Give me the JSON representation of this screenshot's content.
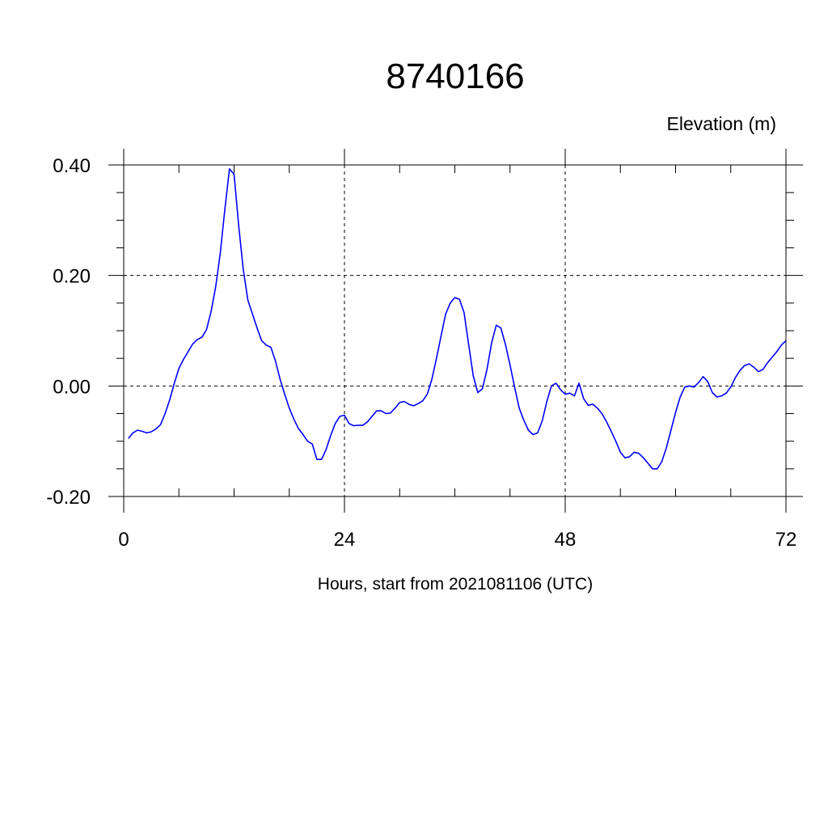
{
  "chart_data": {
    "type": "line",
    "title": "8740166",
    "ylabel": "Elevation (m)",
    "xlabel": "Hours, start from 2021081106 (UTC)",
    "xlim": [
      0,
      72
    ],
    "ylim": [
      -0.2,
      0.4
    ],
    "xticks": [
      0,
      24,
      48,
      72
    ],
    "xtick_labels": [
      "0",
      "24",
      "48",
      "72"
    ],
    "yticks": [
      -0.2,
      0,
      0.2,
      0.4
    ],
    "ytick_labels": [
      "-0.20",
      "0.00",
      "0.20",
      "0.40"
    ],
    "grid": true,
    "line_color": "#0000ff",
    "series": [
      {
        "x": [
          0.5,
          1.0,
          1.5,
          2.0,
          2.5,
          3.0,
          3.5,
          4.0,
          4.5,
          5.0,
          5.5,
          6.0,
          6.5,
          7.0,
          7.5,
          8.0,
          8.5,
          9.0,
          9.5,
          10.0,
          10.5,
          11.0,
          11.5,
          12.0,
          12.5,
          13.0,
          13.5,
          14.0,
          14.5,
          15.0,
          15.5,
          16.0,
          16.5,
          17.0,
          17.5,
          18.0,
          18.5,
          19.0,
          19.5,
          20.0,
          20.5,
          21.0,
          21.5,
          22.0,
          22.5,
          23.0,
          23.5,
          24.0,
          24.5,
          25.0,
          25.5,
          26.0,
          26.5,
          27.0,
          27.5,
          28.0,
          28.5,
          29.0,
          29.5,
          30.0,
          30.5,
          31.0,
          31.5,
          32.0,
          32.5,
          33.0,
          33.5,
          34.0,
          34.5,
          35.0,
          35.5,
          36.0,
          36.5,
          37.0,
          37.5,
          38.0,
          38.5,
          39.0,
          39.5,
          40.0,
          40.5,
          41.0,
          41.5,
          42.0,
          42.5,
          43.0,
          43.5,
          44.0,
          44.5,
          45.0,
          45.5,
          46.0,
          46.5,
          47.0,
          47.5,
          48.0,
          48.5,
          49.0,
          49.5,
          50.0,
          50.5,
          51.0,
          51.5,
          52.0,
          52.5,
          53.0,
          53.5,
          54.0,
          54.5,
          55.0,
          55.5,
          56.0,
          56.5,
          57.0,
          57.5,
          58.0,
          58.5,
          59.0,
          59.5,
          60.0,
          60.5,
          61.0,
          61.5,
          62.0,
          62.5,
          63.0,
          63.5,
          64.0,
          64.5,
          65.0,
          65.5,
          66.0,
          66.5,
          67.0,
          67.5,
          68.0,
          68.5,
          69.0,
          69.5,
          70.0,
          70.5,
          71.0,
          71.5,
          72.0
        ],
        "values": [
          -0.095,
          -0.085,
          -0.08,
          -0.082,
          -0.085,
          -0.083,
          -0.078,
          -0.07,
          -0.05,
          -0.025,
          0.005,
          0.032,
          0.048,
          0.062,
          0.076,
          0.084,
          0.088,
          0.102,
          0.135,
          0.18,
          0.24,
          0.32,
          0.393,
          0.383,
          0.29,
          0.21,
          0.155,
          0.13,
          0.105,
          0.082,
          0.074,
          0.07,
          0.045,
          0.012,
          -0.015,
          -0.04,
          -0.06,
          -0.077,
          -0.088,
          -0.1,
          -0.105,
          -0.133,
          -0.133,
          -0.115,
          -0.09,
          -0.068,
          -0.055,
          -0.053,
          -0.068,
          -0.072,
          -0.071,
          -0.071,
          -0.065,
          -0.055,
          -0.045,
          -0.045,
          -0.05,
          -0.049,
          -0.04,
          -0.03,
          -0.028,
          -0.033,
          -0.036,
          -0.032,
          -0.027,
          -0.015,
          0.012,
          0.05,
          0.09,
          0.13,
          0.15,
          0.16,
          0.157,
          0.133,
          0.075,
          0.018,
          -0.012,
          -0.005,
          0.03,
          0.078,
          0.11,
          0.105,
          0.075,
          0.038,
          -0.002,
          -0.04,
          -0.062,
          -0.08,
          -0.088,
          -0.085,
          -0.063,
          -0.028,
          0.0,
          0.005,
          -0.007,
          -0.015,
          -0.013,
          -0.018,
          0.005,
          -0.023,
          -0.035,
          -0.033,
          -0.04,
          -0.05,
          -0.065,
          -0.082,
          -0.1,
          -0.12,
          -0.13,
          -0.128,
          -0.12,
          -0.122,
          -0.13,
          -0.14,
          -0.15,
          -0.15,
          -0.137,
          -0.112,
          -0.08,
          -0.048,
          -0.02,
          -0.002,
          0.0,
          -0.002,
          0.006,
          0.017,
          0.008,
          -0.012,
          -0.02,
          -0.018,
          -0.013,
          -0.002,
          0.015,
          0.028,
          0.037,
          0.04,
          0.034,
          0.026,
          0.03,
          0.042,
          0.052,
          0.062,
          0.074,
          0.082
        ]
      }
    ]
  }
}
